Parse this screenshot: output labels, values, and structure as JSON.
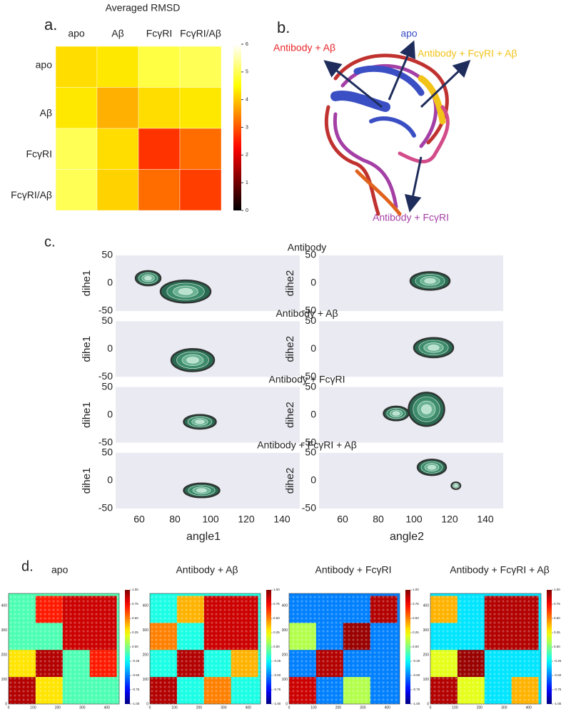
{
  "panel_a": {
    "label": "a.",
    "title": "Averaged RMSD",
    "labels": [
      "apo",
      "Aβ",
      "FcγRI",
      "FcγRI/Aβ"
    ],
    "values": [
      [
        4.2,
        4.3,
        4.9,
        5.0
      ],
      [
        4.3,
        3.8,
        4.2,
        4.3
      ],
      [
        5.0,
        4.2,
        2.7,
        3.2
      ],
      [
        5.0,
        4.1,
        3.2,
        2.8
      ]
    ],
    "colorbar": {
      "lim": [
        0,
        6
      ],
      "ticks": [
        0,
        1,
        2,
        3,
        4,
        5,
        6
      ]
    }
  },
  "panel_b": {
    "label": "b.",
    "annotations": [
      {
        "text": "Antibody + Aβ",
        "color": "#e8262a"
      },
      {
        "text": "apo",
        "color": "#3b4fc4"
      },
      {
        "text": "Antibody + FcγRI + Aβ",
        "color": "#f2c318"
      },
      {
        "text": "Antibody + FcγRI",
        "color": "#a43fa6"
      }
    ]
  },
  "panel_c": {
    "label": "c.",
    "xlim": [
      50,
      150
    ],
    "ylim": [
      -50,
      50
    ],
    "xticks": [
      60,
      80,
      100,
      120,
      140
    ],
    "yticks": [
      50,
      0,
      -50
    ],
    "xlabels": [
      "angle1",
      "angle2"
    ],
    "ylabels": [
      "dihe1",
      "dihe2"
    ],
    "rows": [
      {
        "title": "Antibody",
        "left": [
          {
            "x": [
              58,
              72
            ],
            "y": [
              -4,
              22
            ]
          },
          {
            "x": [
              72,
              100
            ],
            "y": [
              -35,
              5
            ]
          }
        ],
        "right": [
          {
            "x": [
              98,
              120
            ],
            "y": [
              -12,
              20
            ]
          }
        ]
      },
      {
        "title": "Antibody + Aβ",
        "left": [
          {
            "x": [
              78,
              102
            ],
            "y": [
              -40,
              0
            ]
          }
        ],
        "right": [
          {
            "x": [
              100,
              122
            ],
            "y": [
              -15,
              20
            ]
          }
        ]
      },
      {
        "title": "Antibody + FcγRI",
        "left": [
          {
            "x": [
              85,
              103
            ],
            "y": [
              -25,
              0
            ]
          }
        ],
        "right": [
          {
            "x": [
              83,
              97
            ],
            "y": [
              -10,
              15
            ]
          },
          {
            "x": [
              97,
              117
            ],
            "y": [
              -20,
              40
            ]
          }
        ]
      },
      {
        "title": "Antibody + FcγRI + Aβ",
        "left": [
          {
            "x": [
              85,
              105
            ],
            "y": [
              -30,
              -5
            ]
          }
        ],
        "right": [
          {
            "x": [
              102,
              118
            ],
            "y": [
              10,
              38
            ]
          },
          {
            "x": [
              121,
              126
            ],
            "y": [
              -15,
              -3
            ]
          }
        ]
      }
    ]
  },
  "panel_d": {
    "label": "d.",
    "lim": [
      0,
      450
    ],
    "ticks": [
      0,
      100,
      200,
      300,
      400
    ],
    "colorbar": {
      "lim": [
        -1,
        1
      ],
      "ticks": [
        {
          "value": 1,
          "label": "1.00"
        },
        {
          "value": 0.75,
          "label": "0.75"
        },
        {
          "value": 0.5,
          "label": "0.50"
        },
        {
          "value": 0.25,
          "label": "0.25"
        },
        {
          "value": 0,
          "label": "0.00"
        },
        {
          "value": -0.25,
          "label": "-0.25"
        },
        {
          "value": -0.5,
          "label": "-0.50"
        },
        {
          "value": -0.75,
          "label": "-0.75"
        },
        {
          "value": -1,
          "label": "-1.00"
        }
      ]
    },
    "maps": [
      {
        "title": "apo",
        "background": -0.1,
        "blocks": [
          {
            "x": [
              0,
              110
            ],
            "y": [
              0,
              110
            ],
            "value": 0.9
          },
          {
            "x": [
              110,
              220
            ],
            "y": [
              110,
              220
            ],
            "value": 0.9
          },
          {
            "x": [
              220,
              440
            ],
            "y": [
              220,
              440
            ],
            "value": 0.85
          },
          {
            "x": [
              0,
              110
            ],
            "y": [
              110,
              220
            ],
            "value": 0.3
          },
          {
            "x": [
              110,
              220
            ],
            "y": [
              0,
              110
            ],
            "value": 0.3
          },
          {
            "x": [
              110,
              220
            ],
            "y": [
              330,
              440
            ],
            "value": 0.7
          },
          {
            "x": [
              330,
              440
            ],
            "y": [
              110,
              220
            ],
            "value": 0.7
          }
        ]
      },
      {
        "title": "Antibody + Aβ",
        "background": -0.2,
        "blocks": [
          {
            "x": [
              0,
              110
            ],
            "y": [
              0,
              110
            ],
            "value": 0.9
          },
          {
            "x": [
              110,
              220
            ],
            "y": [
              110,
              220
            ],
            "value": 0.9
          },
          {
            "x": [
              220,
              440
            ],
            "y": [
              220,
              440
            ],
            "value": 0.85
          },
          {
            "x": [
              0,
              110
            ],
            "y": [
              220,
              330
            ],
            "value": 0.5
          },
          {
            "x": [
              220,
              330
            ],
            "y": [
              0,
              110
            ],
            "value": 0.5
          },
          {
            "x": [
              110,
              220
            ],
            "y": [
              330,
              440
            ],
            "value": 0.4
          },
          {
            "x": [
              330,
              440
            ],
            "y": [
              110,
              220
            ],
            "value": 0.4
          }
        ]
      },
      {
        "title": "Antibody + FcγRI",
        "background": -0.5,
        "blocks": [
          {
            "x": [
              0,
              110
            ],
            "y": [
              0,
              110
            ],
            "value": 0.85
          },
          {
            "x": [
              110,
              220
            ],
            "y": [
              110,
              220
            ],
            "value": 0.9
          },
          {
            "x": [
              220,
              330
            ],
            "y": [
              220,
              330
            ],
            "value": 0.95
          },
          {
            "x": [
              330,
              440
            ],
            "y": [
              330,
              440
            ],
            "value": 0.9
          },
          {
            "x": [
              0,
              110
            ],
            "y": [
              220,
              330
            ],
            "value": 0.1
          },
          {
            "x": [
              220,
              330
            ],
            "y": [
              0,
              110
            ],
            "value": 0.1
          }
        ]
      },
      {
        "title": "Antibody + FcγRI + Aβ",
        "background": -0.3,
        "blocks": [
          {
            "x": [
              0,
              110
            ],
            "y": [
              0,
              110
            ],
            "value": 0.9
          },
          {
            "x": [
              110,
              220
            ],
            "y": [
              110,
              220
            ],
            "value": 0.95
          },
          {
            "x": [
              220,
              440
            ],
            "y": [
              220,
              440
            ],
            "value": 0.9
          },
          {
            "x": [
              0,
              110
            ],
            "y": [
              110,
              220
            ],
            "value": 0.2
          },
          {
            "x": [
              110,
              220
            ],
            "y": [
              0,
              110
            ],
            "value": 0.2
          },
          {
            "x": [
              330,
              440
            ],
            "y": [
              0,
              110
            ],
            "value": 0.4
          },
          {
            "x": [
              0,
              110
            ],
            "y": [
              330,
              440
            ],
            "value": 0.4
          }
        ]
      }
    ]
  }
}
